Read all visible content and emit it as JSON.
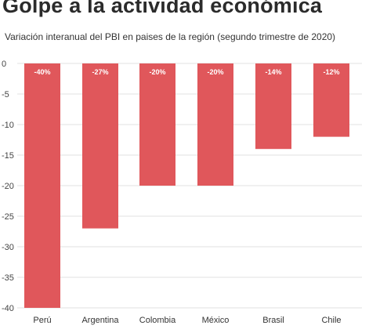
{
  "chart_data": {
    "type": "bar",
    "title": "Golpe a la actividad económica",
    "subtitle": "Variación interanual del PBI en paises de la región (segundo trimestre de 2020)",
    "categories": [
      "Perú",
      "Argentina",
      "Colombia",
      "México",
      "Brasil",
      "Chile"
    ],
    "values": [
      -40,
      -27,
      -20,
      -20,
      -14,
      -12
    ],
    "data_labels": [
      "-40%",
      "-27%",
      "-20%",
      "-20%",
      "-14%",
      "-12%"
    ],
    "ylim": [
      -40,
      0
    ],
    "yticks": [
      0,
      -5,
      -10,
      -15,
      -20,
      -25,
      -30,
      -35,
      -40
    ],
    "grid": true,
    "bar_color": "#e0575b"
  }
}
